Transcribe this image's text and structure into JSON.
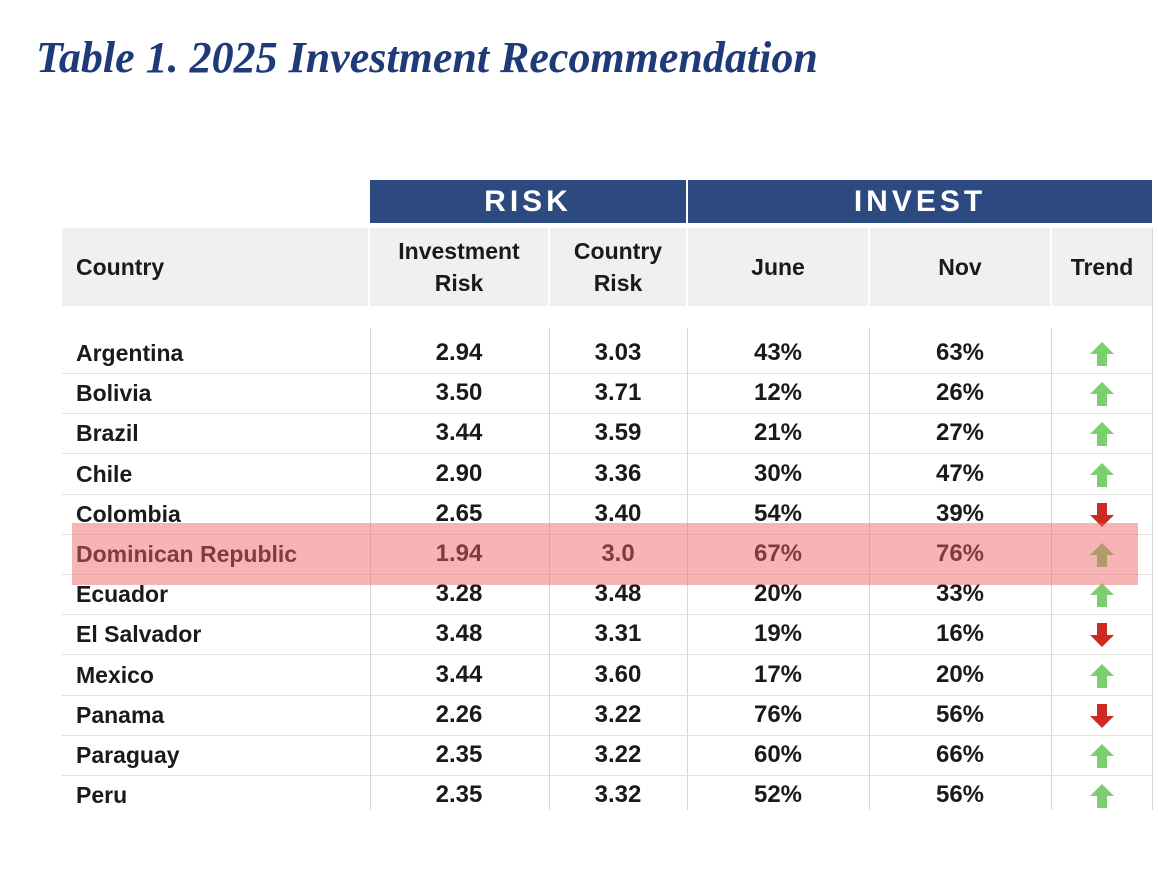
{
  "title": "Table 1. 2025 Investment Recommendation",
  "groups": {
    "risk": "RISK",
    "invest": "INVEST"
  },
  "headers": {
    "country": "Country",
    "investment_risk_l1": "Investment",
    "investment_risk_l2": "Risk",
    "country_risk_l1": "Country",
    "country_risk_l2": "Risk",
    "june": "June",
    "nov": "Nov",
    "trend": "Trend"
  },
  "colors": {
    "band": "#2c4a80",
    "title": "#1f3a78",
    "up": "#7ccf6e",
    "down": "#cc2a22",
    "highlight": "#ec6262"
  },
  "rows": [
    {
      "country": "Argentina",
      "investment_risk": "2.94",
      "country_risk": "3.03",
      "june": "43%",
      "nov": "63%",
      "trend": "up"
    },
    {
      "country": "Bolivia",
      "investment_risk": "3.50",
      "country_risk": "3.71",
      "june": "12%",
      "nov": "26%",
      "trend": "up"
    },
    {
      "country": "Brazil",
      "investment_risk": "3.44",
      "country_risk": "3.59",
      "june": "21%",
      "nov": "27%",
      "trend": "up"
    },
    {
      "country": "Chile",
      "investment_risk": "2.90",
      "country_risk": "3.36",
      "june": "30%",
      "nov": "47%",
      "trend": "up"
    },
    {
      "country": "Colombia",
      "investment_risk": "2.65",
      "country_risk": "3.40",
      "june": "54%",
      "nov": "39%",
      "trend": "down"
    },
    {
      "country": "Dominican Republic",
      "investment_risk": "1.94",
      "country_risk": "3.0",
      "june": "67%",
      "nov": "76%",
      "trend": "up",
      "highlighted": true
    },
    {
      "country": "Ecuador",
      "investment_risk": "3.28",
      "country_risk": "3.48",
      "june": "20%",
      "nov": "33%",
      "trend": "up"
    },
    {
      "country": "El Salvador",
      "investment_risk": "3.48",
      "country_risk": "3.31",
      "june": "19%",
      "nov": "16%",
      "trend": "down"
    },
    {
      "country": "Mexico",
      "investment_risk": "3.44",
      "country_risk": "3.60",
      "june": "17%",
      "nov": "20%",
      "trend": "up"
    },
    {
      "country": "Panama",
      "investment_risk": "2.26",
      "country_risk": "3.22",
      "june": "76%",
      "nov": "56%",
      "trend": "down"
    },
    {
      "country": "Paraguay",
      "investment_risk": "2.35",
      "country_risk": "3.22",
      "june": "60%",
      "nov": "66%",
      "trend": "up"
    },
    {
      "country": "Peru",
      "investment_risk": "2.35",
      "country_risk": "3.32",
      "june": "52%",
      "nov": "56%",
      "trend": "up"
    }
  ]
}
